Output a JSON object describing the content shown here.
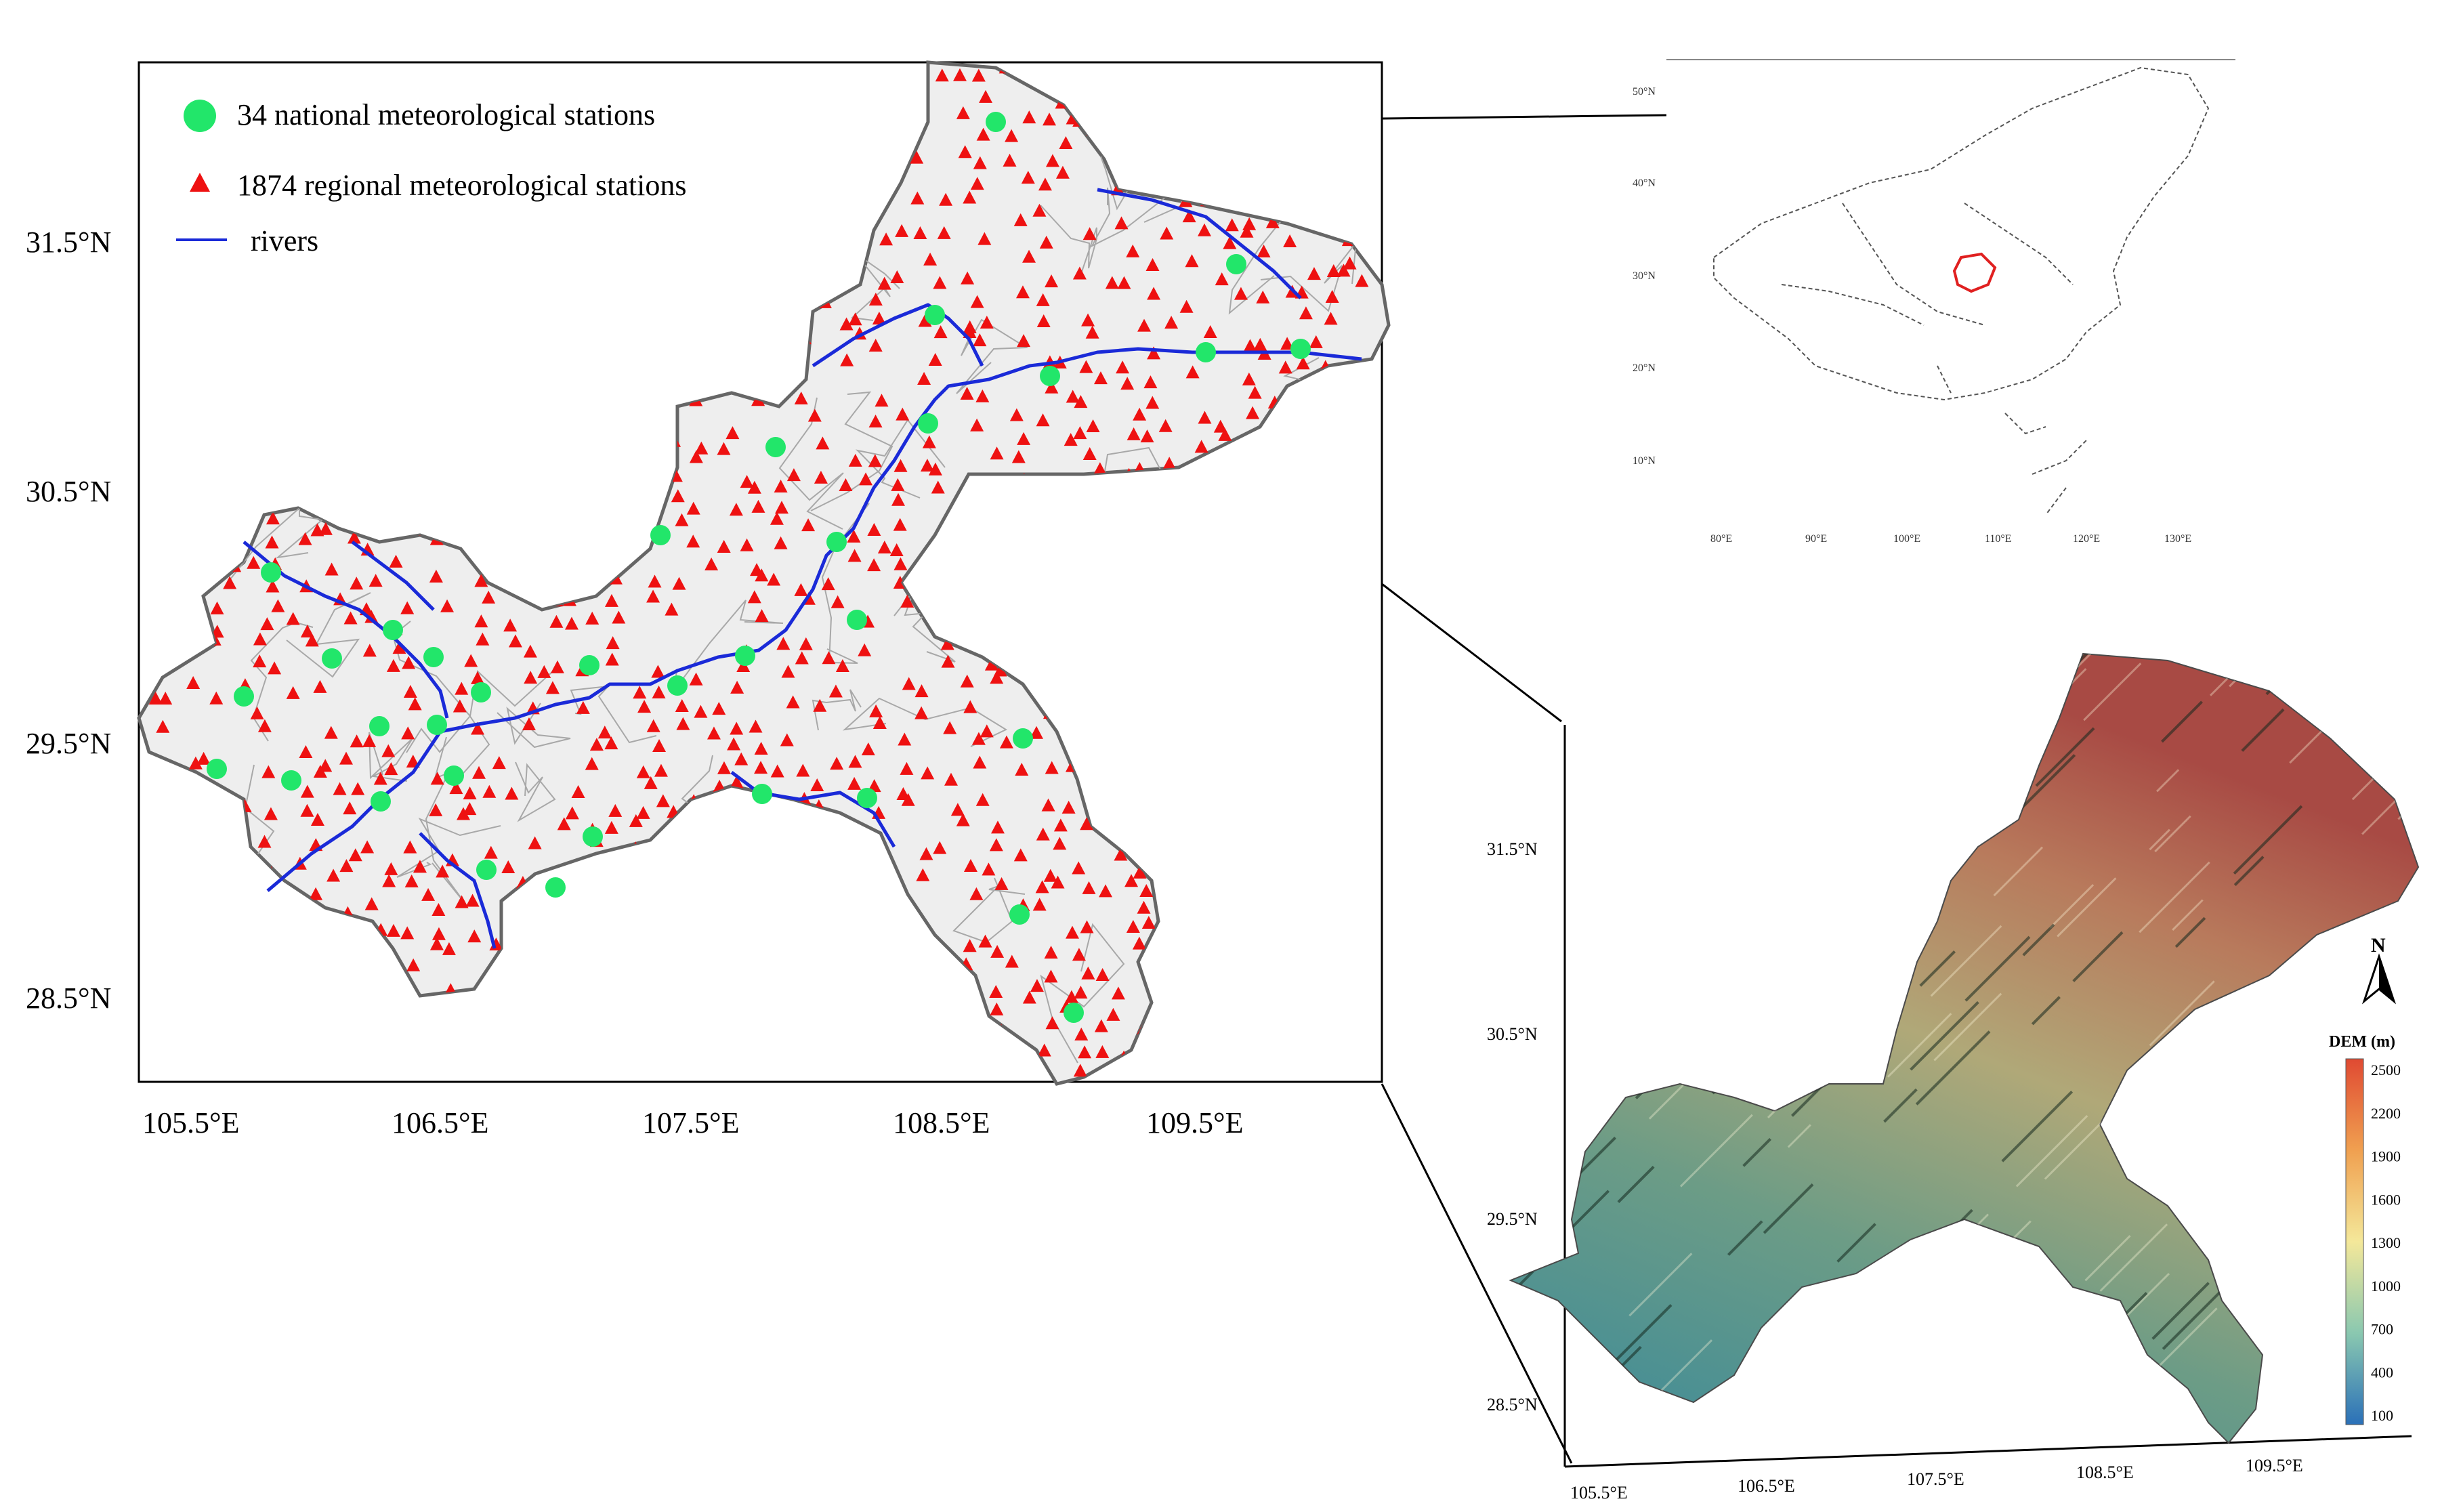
{
  "main_map": {
    "legend": {
      "national": "34 national meteorological stations",
      "regional": "1874 regional meteorological stations",
      "rivers": "rivers"
    },
    "lat_labels": [
      "31.5°N",
      "30.5°N",
      "29.5°N",
      "28.5°N"
    ],
    "lon_labels": [
      "105.5°E",
      "106.5°E",
      "107.5°E",
      "108.5°E",
      "109.5°E"
    ],
    "colors": {
      "national": "#22e66a",
      "regional": "#ee1111",
      "rivers": "#1a2ad8",
      "region_fill": "#eeeeee",
      "border": "#666666"
    }
  },
  "inset_china": {
    "lat_labels": [
      "50°N",
      "40°N",
      "30°N",
      "20°N",
      "10°N"
    ],
    "lon_labels": [
      "80°E",
      "90°E",
      "100°E",
      "110°E",
      "120°E",
      "130°E"
    ],
    "highlight_color": "#e02020"
  },
  "dem_map": {
    "legend_title": "DEM (m)",
    "legend_ticks": [
      "2500",
      "2200",
      "1900",
      "1600",
      "1300",
      "1000",
      "700",
      "400",
      "100"
    ],
    "north": "N",
    "lat_labels": [
      "31.5°N",
      "30.5°N",
      "29.5°N",
      "28.5°N"
    ],
    "lon_labels": [
      "105.5°E",
      "106.5°E",
      "107.5°E",
      "108.5°E",
      "109.5°E"
    ]
  }
}
